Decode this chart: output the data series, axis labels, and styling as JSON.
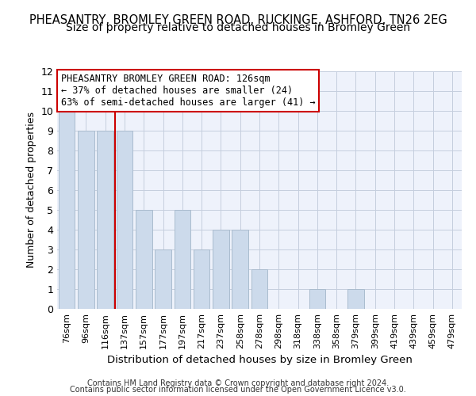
{
  "title": "PHEASANTRY, BROMLEY GREEN ROAD, RUCKINGE, ASHFORD, TN26 2EG",
  "subtitle": "Size of property relative to detached houses in Bromley Green",
  "xlabel": "Distribution of detached houses by size in Bromley Green",
  "ylabel": "Number of detached properties",
  "categories": [
    "76sqm",
    "96sqm",
    "116sqm",
    "137sqm",
    "157sqm",
    "177sqm",
    "197sqm",
    "217sqm",
    "237sqm",
    "258sqm",
    "278sqm",
    "298sqm",
    "318sqm",
    "338sqm",
    "358sqm",
    "379sqm",
    "399sqm",
    "419sqm",
    "439sqm",
    "459sqm",
    "479sqm"
  ],
  "values": [
    10,
    9,
    9,
    9,
    5,
    3,
    5,
    3,
    4,
    4,
    2,
    0,
    0,
    1,
    0,
    1,
    0,
    0,
    0,
    0,
    0
  ],
  "bar_color": "#ccdaeb",
  "bar_edge_color": "#aabcce",
  "reference_line_index": 2,
  "reference_line_color": "#cc0000",
  "annotation_text": "PHEASANTRY BROMLEY GREEN ROAD: 126sqm\n← 37% of detached houses are smaller (24)\n63% of semi-detached houses are larger (41) →",
  "annotation_box_facecolor": "#ffffff",
  "annotation_box_edgecolor": "#cc0000",
  "ylim": [
    0,
    12
  ],
  "yticks": [
    0,
    1,
    2,
    3,
    4,
    5,
    6,
    7,
    8,
    9,
    10,
    11,
    12
  ],
  "footer_line1": "Contains HM Land Registry data © Crown copyright and database right 2024.",
  "footer_line2": "Contains public sector information licensed under the Open Government Licence v3.0.",
  "bg_color": "#eef2fb",
  "grid_color": "#c5cede",
  "title_fontsize": 10.5,
  "subtitle_fontsize": 10,
  "ylabel_fontsize": 9,
  "xlabel_fontsize": 9.5,
  "tick_fontsize": 8,
  "annotation_fontsize": 8.5,
  "footer_fontsize": 7
}
